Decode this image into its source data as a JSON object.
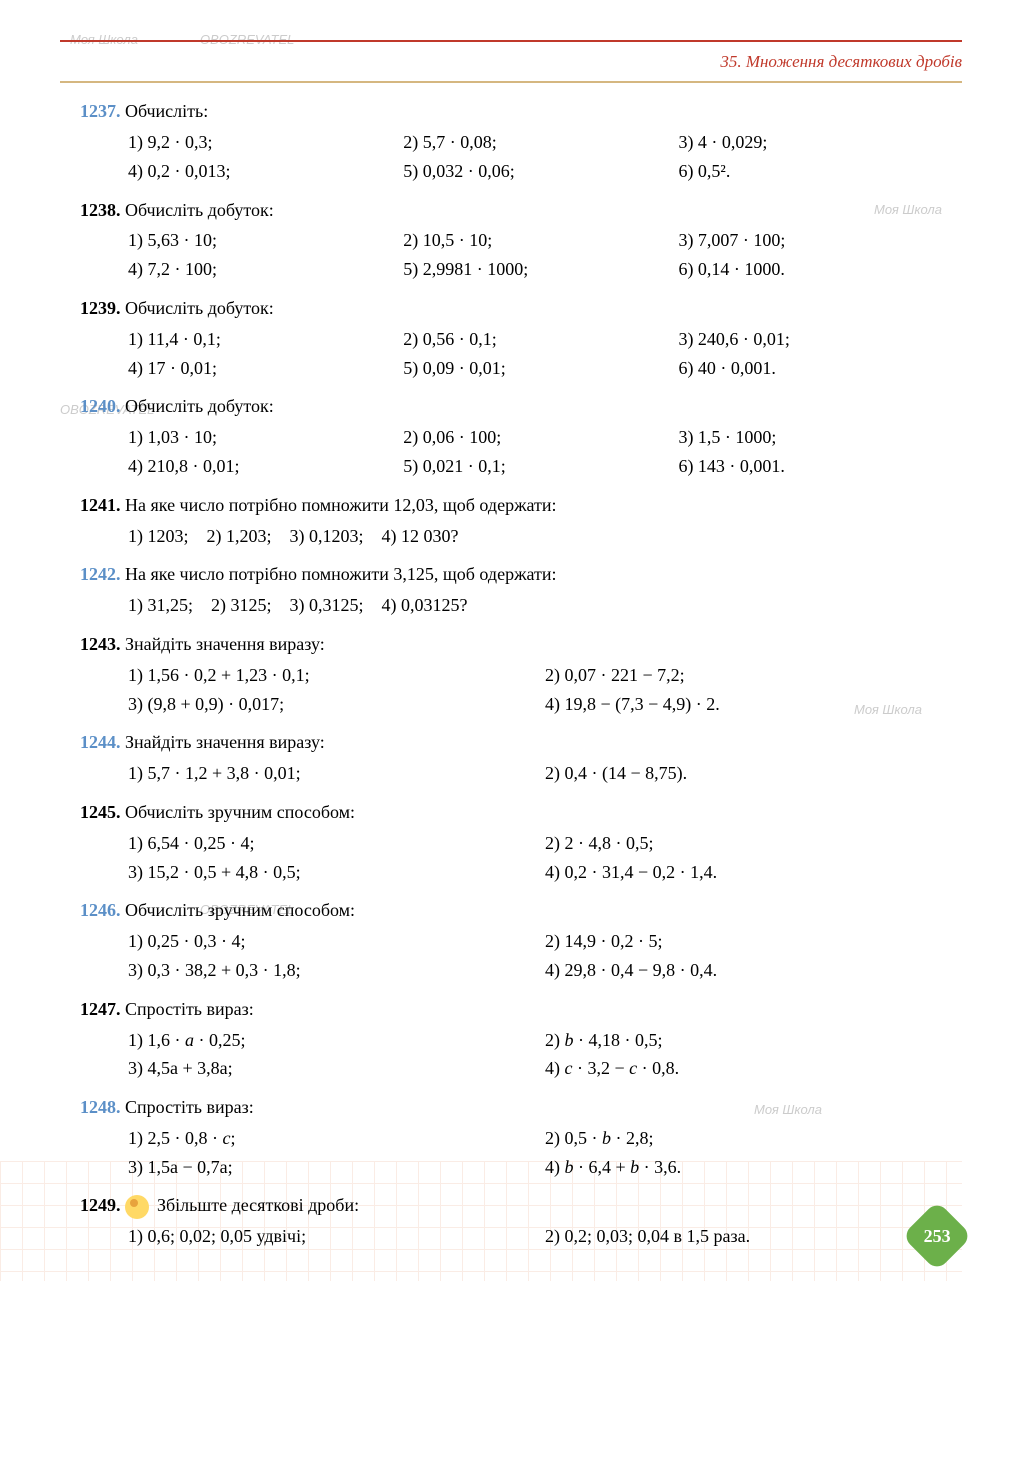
{
  "section_title": "35. Множення десяткових дробів",
  "page_number": "253",
  "watermarks": [
    "Моя Школа",
    "OBOZREVATEL"
  ],
  "problems": [
    {
      "num": "1237.",
      "num_color": "blue",
      "title": "Обчисліть:",
      "layout": "c3",
      "rows": [
        [
          "1) 9,2 · 0,3;",
          "2) 5,7 · 0,08;",
          "3) 4 · 0,029;"
        ],
        [
          "4) 0,2 · 0,013;",
          "5) 0,032 · 0,06;",
          "6) 0,5²."
        ]
      ]
    },
    {
      "num": "1238.",
      "num_color": "black",
      "title": "Обчисліть добуток:",
      "layout": "c3",
      "rows": [
        [
          "1) 5,63 · 10;",
          "2) 10,5 · 10;",
          "3) 7,007 · 100;"
        ],
        [
          "4) 7,2 · 100;",
          "5) 2,9981 · 1000;",
          "6) 0,14 · 1000."
        ]
      ]
    },
    {
      "num": "1239.",
      "num_color": "black",
      "title": "Обчисліть добуток:",
      "layout": "c3",
      "rows": [
        [
          "1) 11,4 · 0,1;",
          "2) 0,56 · 0,1;",
          "3) 240,6 · 0,01;"
        ],
        [
          "4) 17 · 0,01;",
          "5) 0,09 · 0,01;",
          "6) 40 · 0,001."
        ]
      ]
    },
    {
      "num": "1240.",
      "num_color": "blue",
      "title": "Обчисліть добуток:",
      "layout": "c3",
      "rows": [
        [
          "1) 1,03 · 10;",
          "2) 0,06 · 100;",
          "3) 1,5 · 1000;"
        ],
        [
          "4) 210,8 · 0,01;",
          "5) 0,021 · 0,1;",
          "6) 143 · 0,001."
        ]
      ]
    },
    {
      "num": "1241.",
      "num_color": "black",
      "title": "На яке число потрібно помножити 12,03, щоб одержати:",
      "layout": "inline",
      "rows": [
        [
          "1) 1203;",
          "2) 1,203;",
          "3) 0,1203;",
          "4) 12 030?"
        ]
      ]
    },
    {
      "num": "1242.",
      "num_color": "blue",
      "title": "На яке число потрібно помножити 3,125, щоб одержати:",
      "layout": "inline",
      "rows": [
        [
          "1) 31,25;",
          "2) 3125;",
          "3) 0,3125;",
          "4) 0,03125?"
        ]
      ]
    },
    {
      "num": "1243.",
      "num_color": "black",
      "title": "Знайдіть значення виразу:",
      "layout": "c2",
      "rows": [
        [
          "1) 1,56 · 0,2 + 1,23 · 0,1;",
          "2) 0,07 · 221 − 7,2;"
        ],
        [
          "3) (9,8 + 0,9) · 0,017;",
          "4) 19,8 − (7,3 − 4,9) · 2."
        ]
      ]
    },
    {
      "num": "1244.",
      "num_color": "blue",
      "title": "Знайдіть значення виразу:",
      "layout": "c2",
      "rows": [
        [
          "1) 5,7 · 1,2 + 3,8 · 0,01;",
          "2) 0,4 · (14 − 8,75)."
        ]
      ]
    },
    {
      "num": "1245.",
      "num_color": "black",
      "title": "Обчисліть зручним способом:",
      "layout": "c2",
      "rows": [
        [
          "1) 6,54 · 0,25 · 4;",
          "2) 2 · 4,8 · 0,5;"
        ],
        [
          "3) 15,2 · 0,5 + 4,8 · 0,5;",
          "4) 0,2 · 31,4 − 0,2 · 1,4."
        ]
      ]
    },
    {
      "num": "1246.",
      "num_color": "blue",
      "title": "Обчисліть зручним способом:",
      "layout": "c2",
      "rows": [
        [
          "1) 0,25 · 0,3 · 4;",
          "2) 14,9 · 0,2 · 5;"
        ],
        [
          "3) 0,3 · 38,2 + 0,3 · 1,8;",
          "4) 29,8 · 0,4 − 9,8 · 0,4."
        ]
      ]
    },
    {
      "num": "1247.",
      "num_color": "black",
      "title": "Спростіть вираз:",
      "layout": "c2",
      "italic_vars": true,
      "rows": [
        [
          "1) 1,6 · a · 0,25;",
          "2) b · 4,18 · 0,5;"
        ],
        [
          "3) 4,5a + 3,8a;",
          "4) c · 3,2 − c · 0,8."
        ]
      ]
    },
    {
      "num": "1248.",
      "num_color": "blue",
      "title": "Спростіть вираз:",
      "layout": "c2",
      "italic_vars": true,
      "rows": [
        [
          "1) 2,5 · 0,8 · c;",
          "2) 0,5 · b · 2,8;"
        ],
        [
          "3) 1,5a − 0,7a;",
          "4) b · 6,4 + b · 3,6."
        ]
      ]
    },
    {
      "num": "1249.",
      "num_color": "black",
      "has_icon": true,
      "title": "Збільште десяткові дроби:",
      "layout": "c2",
      "rows": [
        [
          "1) 0,6; 0,02; 0,05 удвічі;",
          "2) 0,2; 0,03; 0,04 в 1,5 раза."
        ]
      ]
    }
  ]
}
